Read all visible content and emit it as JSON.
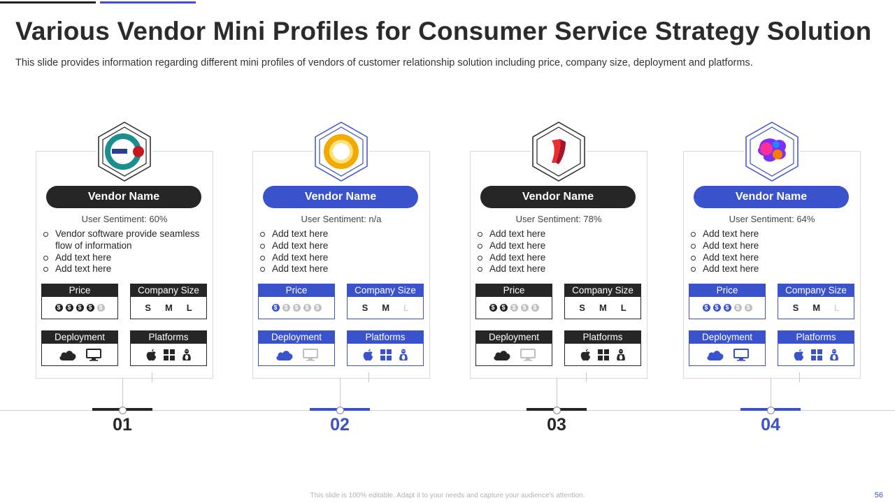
{
  "slide": {
    "title": "Various Vendor Mini Profiles for Consumer Service Strategy Solution",
    "subtitle": "This slide provides information regarding different mini profiles of vendors of customer relationship solution including price, company size, deployment and platforms.",
    "footer": "This slide is 100% editable. Adapt it to your needs and capture your audience's attention.",
    "page_number": "56"
  },
  "labels": {
    "price": "Price",
    "company_size": "Company Size",
    "deployment": "Deployment",
    "platforms": "Platforms",
    "sizes": [
      "S",
      "M",
      "L"
    ]
  },
  "colors": {
    "dark": "#262626",
    "accent": "#3a52cc",
    "muted": "#bfbfbf"
  },
  "vendors": [
    {
      "number": "01",
      "name": "Vendor Name",
      "sentiment": "User Sentiment: 60%",
      "bullets": [
        "Vendor software provide seamless flow of information",
        "Add text here",
        "Add text here"
      ],
      "price_level": 4,
      "size_active": [
        "S",
        "M",
        "L"
      ],
      "deployment_active": [
        "cloud-icon",
        "monitor-icon"
      ],
      "platforms_active": [
        "apple-icon",
        "windows-icon",
        "linux-icon"
      ],
      "logo": "letter-e-logo"
    },
    {
      "number": "02",
      "name": "Vendor Name",
      "sentiment": "User Sentiment: n/a",
      "bullets": [
        "Add text here",
        "Add text here",
        "Add text here",
        "Add text here"
      ],
      "price_level": 1,
      "size_active": [
        "S",
        "M"
      ],
      "deployment_active": [
        "cloud-icon"
      ],
      "platforms_active": [
        "apple-icon",
        "windows-icon",
        "linux-icon"
      ],
      "logo": "ring-logo"
    },
    {
      "number": "03",
      "name": "Vendor Name",
      "sentiment": "User Sentiment: 78%",
      "bullets": [
        "Add text here",
        "Add text here",
        "Add text here",
        "Add text here"
      ],
      "price_level": 2,
      "size_active": [
        "S",
        "M",
        "L"
      ],
      "deployment_active": [
        "cloud-icon"
      ],
      "platforms_active": [
        "apple-icon",
        "windows-icon",
        "linux-icon"
      ],
      "logo": "ribbon-logo"
    },
    {
      "number": "04",
      "name": "Vendor Name",
      "sentiment": "User Sentiment: 64%",
      "bullets": [
        "Add text here",
        "Add text here",
        "Add text here",
        "Add text here"
      ],
      "price_level": 3,
      "size_active": [
        "S",
        "M"
      ],
      "deployment_active": [
        "cloud-icon",
        "monitor-icon"
      ],
      "platforms_active": [
        "apple-icon",
        "windows-icon",
        "linux-icon"
      ],
      "logo": "paint-splash-logo"
    }
  ]
}
